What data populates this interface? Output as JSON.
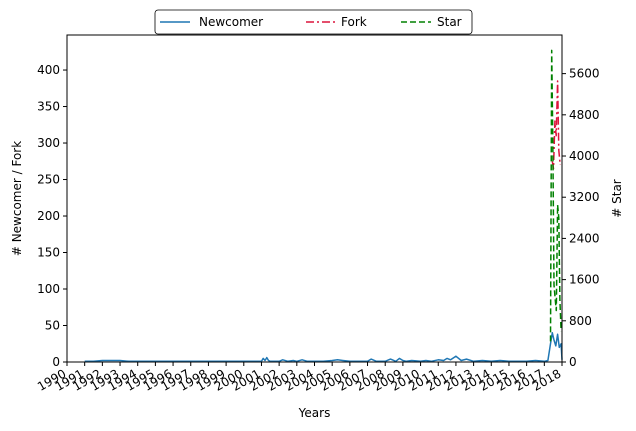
{
  "chart_data": {
    "type": "line",
    "xlabel": "Years",
    "ylabel_left": "# Newcomer / Fork",
    "ylabel_right": "# Star",
    "xlim": [
      1990,
      2018
    ],
    "ylim_left": [
      0,
      448
    ],
    "ylim_right": [
      0,
      6350
    ],
    "x_ticks": [
      1990,
      1991,
      1992,
      1993,
      1994,
      1995,
      1996,
      1997,
      1998,
      1999,
      2000,
      2001,
      2002,
      2003,
      2004,
      2005,
      2006,
      2007,
      2008,
      2009,
      2010,
      2011,
      2012,
      2013,
      2014,
      2015,
      2016,
      2017,
      2018
    ],
    "y_ticks_left": [
      0,
      50,
      100,
      150,
      200,
      250,
      300,
      350,
      400
    ],
    "y_ticks_right": [
      0,
      800,
      1600,
      2400,
      3200,
      4000,
      4800,
      5600
    ],
    "grid": false,
    "legend_position": "top-center",
    "series": [
      {
        "name": "Newcomer",
        "axis": "left",
        "color": "#1f77b4",
        "style": "solid",
        "x": [
          1991.0,
          1991.5,
          1992.0,
          1992.5,
          1993.0,
          1993.5,
          1994.0,
          1995.0,
          1996.0,
          1997.0,
          1998.0,
          1999.0,
          2000.0,
          2001.0,
          2001.1,
          2001.2,
          2001.3,
          2001.4,
          2001.5,
          2001.7,
          2002.0,
          2002.2,
          2002.5,
          2002.8,
          2003.0,
          2003.3,
          2003.6,
          2004.0,
          2004.5,
          2005.0,
          2005.3,
          2005.6,
          2006.0,
          2006.5,
          2007.0,
          2007.2,
          2007.5,
          2008.0,
          2008.3,
          2008.6,
          2008.8,
          2009.0,
          2009.2,
          2009.5,
          2010.0,
          2010.3,
          2010.6,
          2011.0,
          2011.3,
          2011.5,
          2011.7,
          2012.0,
          2012.3,
          2012.6,
          2013.0,
          2013.5,
          2014.0,
          2014.5,
          2015.0,
          2015.5,
          2016.0,
          2016.5,
          2017.0,
          2017.2,
          2017.35,
          2017.45,
          2017.55,
          2017.65,
          2017.75,
          2017.85,
          2017.95,
          2018.0
        ],
        "values": [
          1,
          1,
          2,
          2,
          2,
          1,
          1,
          1,
          1,
          1,
          1,
          1,
          1,
          1,
          5,
          2,
          6,
          2,
          1,
          1,
          1,
          3,
          1,
          2,
          1,
          3,
          1,
          1,
          1,
          2,
          3,
          2,
          1,
          1,
          1,
          4,
          1,
          1,
          4,
          1,
          5,
          2,
          1,
          2,
          1,
          2,
          1,
          3,
          2,
          5,
          3,
          8,
          2,
          4,
          1,
          2,
          1,
          2,
          1,
          1,
          1,
          2,
          1,
          2,
          25,
          40,
          30,
          22,
          38,
          20,
          25,
          3
        ]
      },
      {
        "name": "Fork",
        "axis": "left",
        "color": "#dc143c",
        "style": "dashdot",
        "x": [
          2017.45,
          2017.52,
          2017.6,
          2017.67,
          2017.75,
          2017.82,
          2017.9
        ],
        "values": [
          275,
          265,
          330,
          310,
          385,
          290,
          270
        ]
      },
      {
        "name": "Star",
        "axis": "right",
        "color": "#008000",
        "style": "dashed",
        "x": [
          2017.35,
          2017.42,
          2017.48,
          2017.55,
          2017.62,
          2017.68,
          2017.75,
          2017.82,
          2017.88,
          2017.95
        ],
        "values": [
          400,
          6050,
          4300,
          1500,
          1200,
          1000,
          3050,
          2800,
          1200,
          600
        ]
      }
    ]
  }
}
